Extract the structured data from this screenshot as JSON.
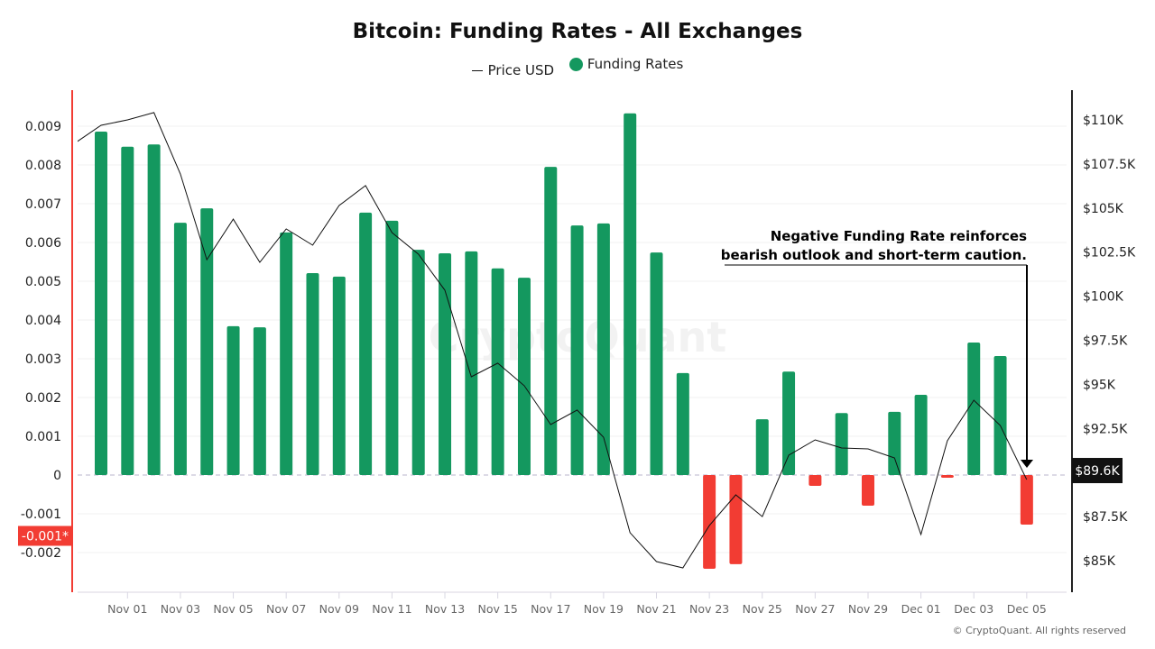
{
  "chart_data": {
    "type": "bar+line",
    "title": "Bitcoin: Funding Rates - All Exchanges",
    "legend": [
      {
        "name": "Price USD",
        "kind": "line",
        "color": "#111111"
      },
      {
        "name": "Funding Rates",
        "kind": "bar",
        "color": "#14985f"
      }
    ],
    "legend_position": "top-center",
    "colors": {
      "positive": "#14985f",
      "negative": "#f23c33",
      "price_line": "#111111",
      "left_axis": "#f23c33",
      "right_axis": "#222222"
    },
    "x_tick_labels": [
      "Nov 01",
      "Nov 03",
      "Nov 05",
      "Nov 07",
      "Nov 09",
      "Nov 11",
      "Nov 13",
      "Nov 15",
      "Nov 17",
      "Nov 19",
      "Nov 21",
      "Nov 23",
      "Nov 25",
      "Nov 27",
      "Nov 29",
      "Dec 01",
      "Dec 03",
      "Dec 05"
    ],
    "left_axis": {
      "ticks": [
        "0.009",
        "0.008",
        "0.007",
        "0.006",
        "0.005",
        "0.004",
        "0.003",
        "0.002",
        "0.001",
        "0",
        "-0.001",
        "-0.002"
      ],
      "range": [
        -0.00295,
        0.01
      ],
      "marker_label": "-0.001*",
      "marker_value": -0.00125
    },
    "right_axis": {
      "ticks": [
        "$110K",
        "$107.5K",
        "$105K",
        "$102.5K",
        "$100K",
        "$97.5K",
        "$95K",
        "$92.5K",
        "$87.5K",
        "$85K"
      ],
      "tick_values": [
        110000,
        107500,
        105000,
        102500,
        100000,
        97500,
        95000,
        92500,
        87500,
        85000
      ],
      "current_label": "$89.6K",
      "current_value": 89600
    },
    "grid": true,
    "funding": {
      "dates": [
        "Oct 31",
        "Nov 01",
        "Nov 02",
        "Nov 03",
        "Nov 04",
        "Nov 05",
        "Nov 06",
        "Nov 07",
        "Nov 08",
        "Nov 09",
        "Nov 10",
        "Nov 11",
        "Nov 12",
        "Nov 13",
        "Nov 14",
        "Nov 15",
        "Nov 16",
        "Nov 17",
        "Nov 18",
        "Nov 19",
        "Nov 20",
        "Nov 21",
        "Nov 22",
        "Nov 23",
        "Nov 24",
        "Nov 25",
        "Nov 26",
        "Nov 27",
        "Nov 28",
        "Nov 29",
        "Nov 30",
        "Dec 01",
        "Dec 02",
        "Dec 03",
        "Dec 04",
        "Dec 05"
      ],
      "values": [
        0.00886,
        0.00847,
        0.00853,
        0.00651,
        0.00688,
        0.00384,
        0.00381,
        0.00626,
        0.00521,
        0.00512,
        0.00677,
        0.00656,
        0.00581,
        0.00572,
        0.00577,
        0.00533,
        0.00509,
        0.00795,
        0.00644,
        0.00649,
        0.00933,
        0.00574,
        0.00263,
        -0.00242,
        -0.0023,
        0.00144,
        0.00267,
        -0.00028,
        0.0016,
        -0.00079,
        0.00163,
        0.00207,
        -7e-05,
        0.00342,
        0.00307,
        -0.00128
      ]
    },
    "price": {
      "dates": [
        "Oct 30",
        "Oct 31",
        "Nov 01",
        "Nov 02",
        "Nov 03",
        "Nov 04",
        "Nov 05",
        "Nov 06",
        "Nov 07",
        "Nov 08",
        "Nov 09",
        "Nov 10",
        "Nov 11",
        "Nov 12",
        "Nov 13",
        "Nov 14",
        "Nov 15",
        "Nov 16",
        "Nov 17",
        "Nov 18",
        "Nov 19",
        "Nov 20",
        "Nov 21",
        "Nov 22",
        "Nov 23",
        "Nov 24",
        "Nov 25",
        "Nov 26",
        "Nov 27",
        "Nov 28",
        "Nov 29",
        "Nov 30",
        "Dec 01",
        "Dec 02",
        "Dec 03",
        "Dec 04",
        "Dec 05"
      ],
      "values": [
        108670,
        109690,
        110000,
        110410,
        106930,
        102070,
        104370,
        101920,
        103810,
        102890,
        105140,
        106270,
        103610,
        102380,
        100340,
        95430,
        96200,
        94920,
        92720,
        93540,
        92000,
        86590,
        84950,
        84590,
        86990,
        88730,
        87500,
        90980,
        91850,
        91390,
        91340,
        90830,
        86480,
        91800,
        94100,
        92670,
        89600
      ]
    },
    "annotation": {
      "line1": "Negative Funding Rate reinforces",
      "line2": "bearish outlook and short-term caution."
    },
    "watermark": "CryptoQuant",
    "copyright": "© CryptoQuant. All rights reserved"
  }
}
